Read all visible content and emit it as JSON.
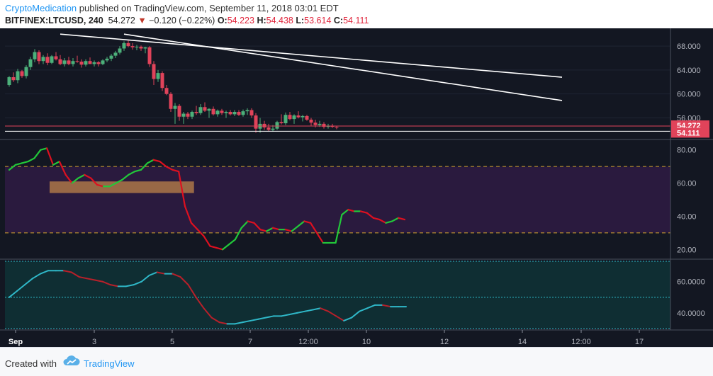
{
  "header": {
    "author": "CryptoMedication",
    "published": " published on TradingView.com, September 11, 2018 03:01 EDT",
    "symbol": "BITFINEX:LTCUSD",
    "interval": ", 240",
    "last": "54.272",
    "change": "−0.120 (−0.22%)",
    "o_label": "O:",
    "o_val": "54.223",
    "h_label": "H:",
    "h_val": "54.438",
    "l_label": "L:",
    "l_val": "53.614",
    "c_label": "C:",
    "c_val": "54.111"
  },
  "footer": {
    "created_with": "Created with",
    "brand": "TradingView"
  },
  "colors": {
    "up": "#4cb07a",
    "down": "#e0435a",
    "rsi_up": "#22c83a",
    "rsi_down": "#dd1020",
    "stoch_up": "#2fb8c8",
    "stoch_down": "#b8202a",
    "background": "#131722"
  },
  "chart_data": [
    {
      "type": "candlestick",
      "symbol": "BITFINEX:LTCUSD",
      "x_tick_labels": [
        "Sep",
        "3",
        "5",
        "7",
        "12:00",
        "10",
        "12",
        "14",
        "12:00",
        "17"
      ],
      "y_ticks": [
        56,
        60,
        64,
        68
      ],
      "y_tick_labels": [
        "56.000",
        "60.000",
        "64.000",
        "68.000"
      ],
      "ylim": [
        52.5,
        70.5
      ],
      "price_labels": [
        {
          "value": 54.272,
          "text": "54.272"
        },
        {
          "value": 54.111,
          "text": "54.111"
        }
      ],
      "candles": [
        [
          61.5,
          63.0,
          61.2,
          62.8
        ],
        [
          62.8,
          63.6,
          62.0,
          62.3
        ],
        [
          62.3,
          64.2,
          61.8,
          63.8
        ],
        [
          63.8,
          64.0,
          62.7,
          63.0
        ],
        [
          63.0,
          64.8,
          62.6,
          64.5
        ],
        [
          64.5,
          66.2,
          64.0,
          65.8
        ],
        [
          65.8,
          67.5,
          65.3,
          67.0
        ],
        [
          67.0,
          67.3,
          65.0,
          65.5
        ],
        [
          65.5,
          66.5,
          65.0,
          66.2
        ],
        [
          66.2,
          66.8,
          64.8,
          65.2
        ],
        [
          65.2,
          66.5,
          65.0,
          66.3
        ],
        [
          66.3,
          67.0,
          65.6,
          65.8
        ],
        [
          65.8,
          66.5,
          64.8,
          65.0
        ],
        [
          65.0,
          66.0,
          64.6,
          65.6
        ],
        [
          65.6,
          66.2,
          64.8,
          65.0
        ],
        [
          65.0,
          66.0,
          64.6,
          65.5
        ],
        [
          65.5,
          66.4,
          65.2,
          65.4
        ],
        [
          65.4,
          65.8,
          64.4,
          64.9
        ],
        [
          64.9,
          65.8,
          64.6,
          65.5
        ],
        [
          65.5,
          66.1,
          65.0,
          65.0
        ],
        [
          65.0,
          65.6,
          64.6,
          65.3
        ],
        [
          65.3,
          65.5,
          64.6,
          65.0
        ],
        [
          65.0,
          65.8,
          64.8,
          65.6
        ],
        [
          65.6,
          66.2,
          65.3,
          65.9
        ],
        [
          65.9,
          66.7,
          65.5,
          66.4
        ],
        [
          66.4,
          67.2,
          66.0,
          66.9
        ],
        [
          66.9,
          68.0,
          66.6,
          67.6
        ],
        [
          67.6,
          68.8,
          67.2,
          68.5
        ],
        [
          68.5,
          68.9,
          67.8,
          68.0
        ],
        [
          68.0,
          68.5,
          67.4,
          67.8
        ],
        [
          67.8,
          68.2,
          67.3,
          67.9
        ],
        [
          67.9,
          68.1,
          67.2,
          67.6
        ],
        [
          67.6,
          67.9,
          66.8,
          67.8
        ],
        [
          67.8,
          68.0,
          64.5,
          65.0
        ],
        [
          65.0,
          65.5,
          61.5,
          62.5
        ],
        [
          62.5,
          64.0,
          62.0,
          63.5
        ],
        [
          63.5,
          63.8,
          60.5,
          61.0
        ],
        [
          61.0,
          61.5,
          59.8,
          60.0
        ],
        [
          60.0,
          60.3,
          57.0,
          57.5
        ],
        [
          57.5,
          58.5,
          55.0,
          58.0
        ],
        [
          58.0,
          58.3,
          55.5,
          56.2
        ],
        [
          56.2,
          57.0,
          55.0,
          56.7
        ],
        [
          56.7,
          57.0,
          55.8,
          56.2
        ],
        [
          56.2,
          57.2,
          55.8,
          57.0
        ],
        [
          57.0,
          58.0,
          56.5,
          56.8
        ],
        [
          56.8,
          58.3,
          56.5,
          57.8
        ],
        [
          57.8,
          58.6,
          57.0,
          57.2
        ],
        [
          57.2,
          57.6,
          56.0,
          57.5
        ],
        [
          57.5,
          57.9,
          56.4,
          56.6
        ],
        [
          56.6,
          57.4,
          56.2,
          57.2
        ],
        [
          57.2,
          57.5,
          56.5,
          56.8
        ],
        [
          56.8,
          57.2,
          56.0,
          57.0
        ],
        [
          57.0,
          57.3,
          56.4,
          56.6
        ],
        [
          56.6,
          57.3,
          56.3,
          57.0
        ],
        [
          57.0,
          57.3,
          56.3,
          56.5
        ],
        [
          56.5,
          57.4,
          56.2,
          57.1
        ],
        [
          57.1,
          57.6,
          56.5,
          57.3
        ],
        [
          57.3,
          57.6,
          56.0,
          56.4
        ],
        [
          56.4,
          56.8,
          53.5,
          54.2
        ],
        [
          54.2,
          56.0,
          53.5,
          55.0
        ],
        [
          55.0,
          55.5,
          54.0,
          54.4
        ],
        [
          54.4,
          55.0,
          53.8,
          54.0
        ],
        [
          54.0,
          54.8,
          53.7,
          54.2
        ],
        [
          54.2,
          55.5,
          54.0,
          55.3
        ],
        [
          55.3,
          56.6,
          54.9,
          55.1
        ],
        [
          55.1,
          56.9,
          54.8,
          56.5
        ],
        [
          56.5,
          57.0,
          55.6,
          55.8
        ],
        [
          55.8,
          56.6,
          55.0,
          56.4
        ],
        [
          56.4,
          57.1,
          55.9,
          56.1
        ],
        [
          56.1,
          56.5,
          55.4,
          56.3
        ],
        [
          56.3,
          56.5,
          55.5,
          55.7
        ],
        [
          55.7,
          56.0,
          54.7,
          55.2
        ],
        [
          55.2,
          55.7,
          54.4,
          54.8
        ],
        [
          54.8,
          55.5,
          54.5,
          55.0
        ],
        [
          55.0,
          55.3,
          54.2,
          54.5
        ],
        [
          54.5,
          55.0,
          54.2,
          54.7
        ],
        [
          54.7,
          55.0,
          54.3,
          54.5
        ],
        [
          54.5,
          54.6,
          54.1,
          54.4
        ]
      ],
      "trendlines": [
        {
          "from": {
            "bar": 12,
            "value": 70.0
          },
          "to": {
            "bar": 130,
            "value": 62.8
          }
        },
        {
          "from": {
            "bar": 27,
            "value": 70.0
          },
          "to": {
            "bar": 130,
            "value": 58.9
          }
        }
      ]
    },
    {
      "type": "line",
      "name": "RSI",
      "ylim": [
        15,
        85
      ],
      "y_ticks": [
        20,
        40,
        60,
        80
      ],
      "y_tick_labels": [
        "20.00",
        "40.00",
        "60.00",
        "80.00"
      ],
      "band": [
        30,
        70
      ],
      "values": [
        68,
        71,
        72,
        73,
        75,
        80,
        81,
        71,
        73,
        65,
        60,
        63,
        65,
        63,
        59,
        58,
        58,
        60,
        62,
        65,
        67,
        68,
        72,
        74,
        73,
        70,
        68,
        67,
        46,
        36,
        32,
        28,
        22,
        21,
        20,
        23,
        26,
        33,
        37,
        36,
        32,
        31,
        33,
        32,
        32,
        31,
        34,
        37,
        36,
        30,
        24,
        24,
        24,
        41,
        44,
        43,
        43,
        42,
        39,
        38,
        36,
        37,
        39,
        38
      ],
      "highlight": {
        "from_index": 7,
        "to_index": 30,
        "y_range": [
          54,
          61
        ]
      }
    },
    {
      "type": "line",
      "name": "Stochastic RSI",
      "ylim": [
        30,
        73
      ],
      "y_ticks": [
        40,
        60
      ],
      "y_tick_labels": [
        "40.0000",
        "60.0000"
      ],
      "band": [
        30,
        50
      ],
      "values": [
        50,
        54,
        58,
        62,
        65,
        67,
        67,
        67,
        66,
        63,
        62,
        61,
        60,
        58,
        57,
        57,
        58,
        60,
        64,
        66,
        65,
        65,
        63,
        58,
        50,
        43,
        37,
        34,
        33,
        33,
        34,
        35,
        36,
        37,
        38,
        38,
        39,
        40,
        41,
        42,
        43,
        41,
        38,
        35,
        37,
        41,
        43,
        45,
        45,
        44,
        44,
        44
      ]
    }
  ]
}
